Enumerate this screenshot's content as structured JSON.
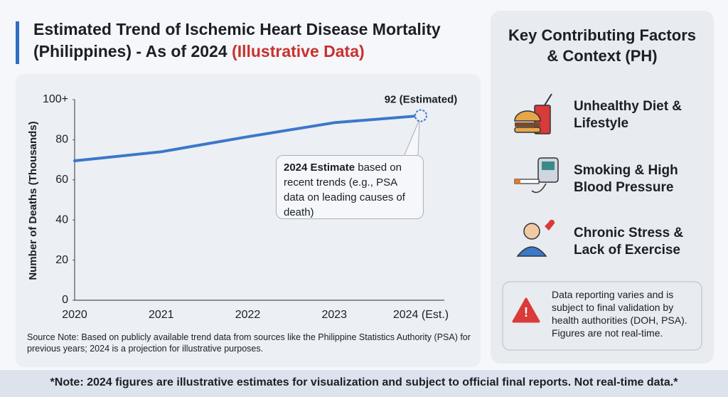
{
  "chart_data": {
    "type": "line",
    "title": "Estimated Trend of Ischemic Heart Disease Mortality (Philippines) - As of 2024",
    "title_highlight": "(Illustrative Data)",
    "y_label": "Number of Deaths (Thousands)",
    "categories": [
      "2020",
      "2021",
      "2022",
      "2023",
      "2024 (Est.)"
    ],
    "values": [
      69.5,
      74,
      81.5,
      88.5,
      92
    ],
    "value_labels": [
      null,
      null,
      null,
      null,
      "92 (Estimated)"
    ],
    "color": "#3a78c9",
    "ylim": [
      0,
      100
    ],
    "yticks": [
      0,
      20,
      40,
      60,
      80,
      {
        "value": 100,
        "label": "100+"
      }
    ],
    "grid": false,
    "annotation": {
      "bold": "2024 Estimate",
      "text": "based on recent trends (e.g., PSA data on leading causes of death)"
    },
    "source_note": "Source Note: Based on publicly available trend data from sources like the Philippine Statistics Authority (PSA) for previous years; 2024 is a projection for illustrative purposes."
  },
  "side_panel": {
    "title": "Key Contributing Factors & Context (PH)",
    "factors": [
      "Unhealthy Diet & Lifestyle",
      "Smoking & High Blood Pressure",
      "Chronic Stress & Lack of Exercise"
    ],
    "warning": "Data reporting varies and is subject to final validation by health authorities (DOH, PSA). Figures are not real-time."
  },
  "footer": "*Note: 2024 figures are illustrative estimates for visualization and subject to official final reports. Not real-time data.*"
}
